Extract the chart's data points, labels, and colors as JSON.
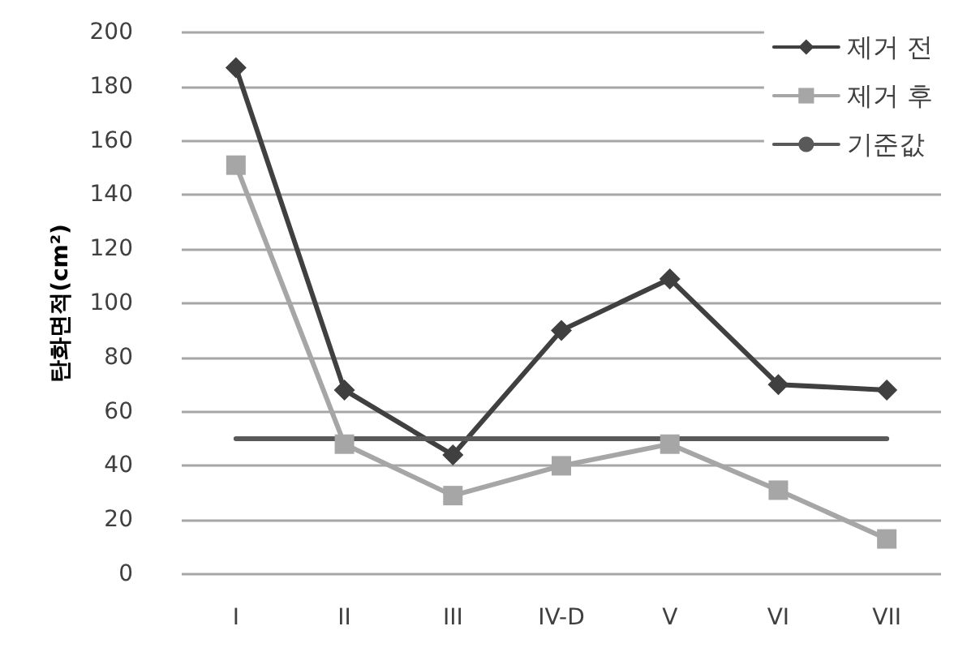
{
  "chart_data": {
    "type": "line",
    "ylabel": "탄화면적(cm²)",
    "categories": [
      "I",
      "II",
      "III",
      "IV-D",
      "V",
      "VI",
      "VII"
    ],
    "series": [
      {
        "name": "제거 전",
        "color": "#404040",
        "marker": "diamond",
        "values": [
          187,
          68,
          44,
          90,
          109,
          70,
          68
        ]
      },
      {
        "name": "제거 후",
        "color": "#a6a6a6",
        "marker": "square",
        "values": [
          151,
          48,
          29,
          40,
          48,
          31,
          13
        ]
      },
      {
        "name": "기준값",
        "color": "#595959",
        "marker": "none",
        "values": [
          50,
          50,
          50,
          50,
          50,
          50,
          50
        ]
      }
    ],
    "ylim": [
      0,
      200
    ],
    "yticks": [
      0,
      20,
      40,
      60,
      80,
      100,
      120,
      140,
      160,
      180,
      200
    ],
    "grid": "y",
    "legend": "top right"
  }
}
